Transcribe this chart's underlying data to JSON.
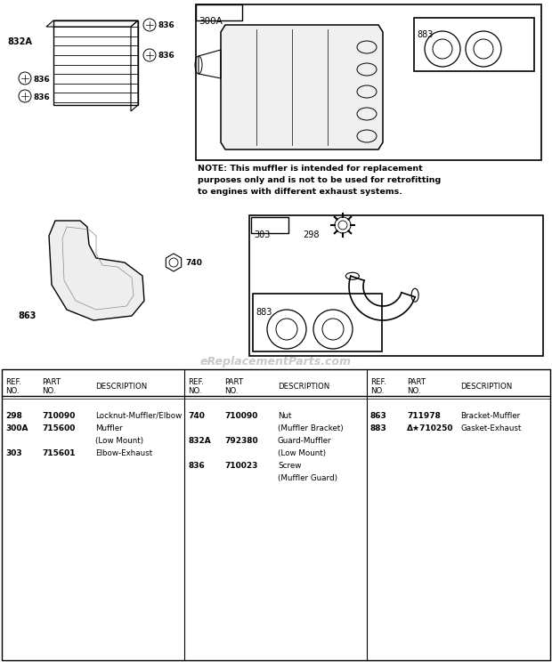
{
  "bg_color": "#ffffff",
  "watermark": "eReplacementParts.com",
  "note_text": "NOTE: This muffler is intended for replacement\npurposes only and is not to be used for retrofitting\nto engines with different exhaust systems.",
  "col1_data": [
    [
      "298",
      "710090",
      "Locknut-Muffler/Elbow"
    ],
    [
      "300A",
      "715600",
      "Muffler"
    ],
    [
      "",
      "",
      "(Low Mount)"
    ],
    [
      "303",
      "715601",
      "Elbow-Exhaust"
    ]
  ],
  "col2_data": [
    [
      "740",
      "710090",
      "Nut"
    ],
    [
      "",
      "",
      "(Muffler Bracket)"
    ],
    [
      "832A",
      "792380",
      "Guard-Muffler"
    ],
    [
      "",
      "",
      "(Low Mount)"
    ],
    [
      "836",
      "710023",
      "Screw"
    ],
    [
      "",
      "",
      "(Muffler Guard)"
    ]
  ],
  "col3_data": [
    [
      "863",
      "711978",
      "Bracket-Muffler"
    ],
    [
      "883",
      "Δ★710250",
      "Gasket-Exhaust"
    ]
  ]
}
